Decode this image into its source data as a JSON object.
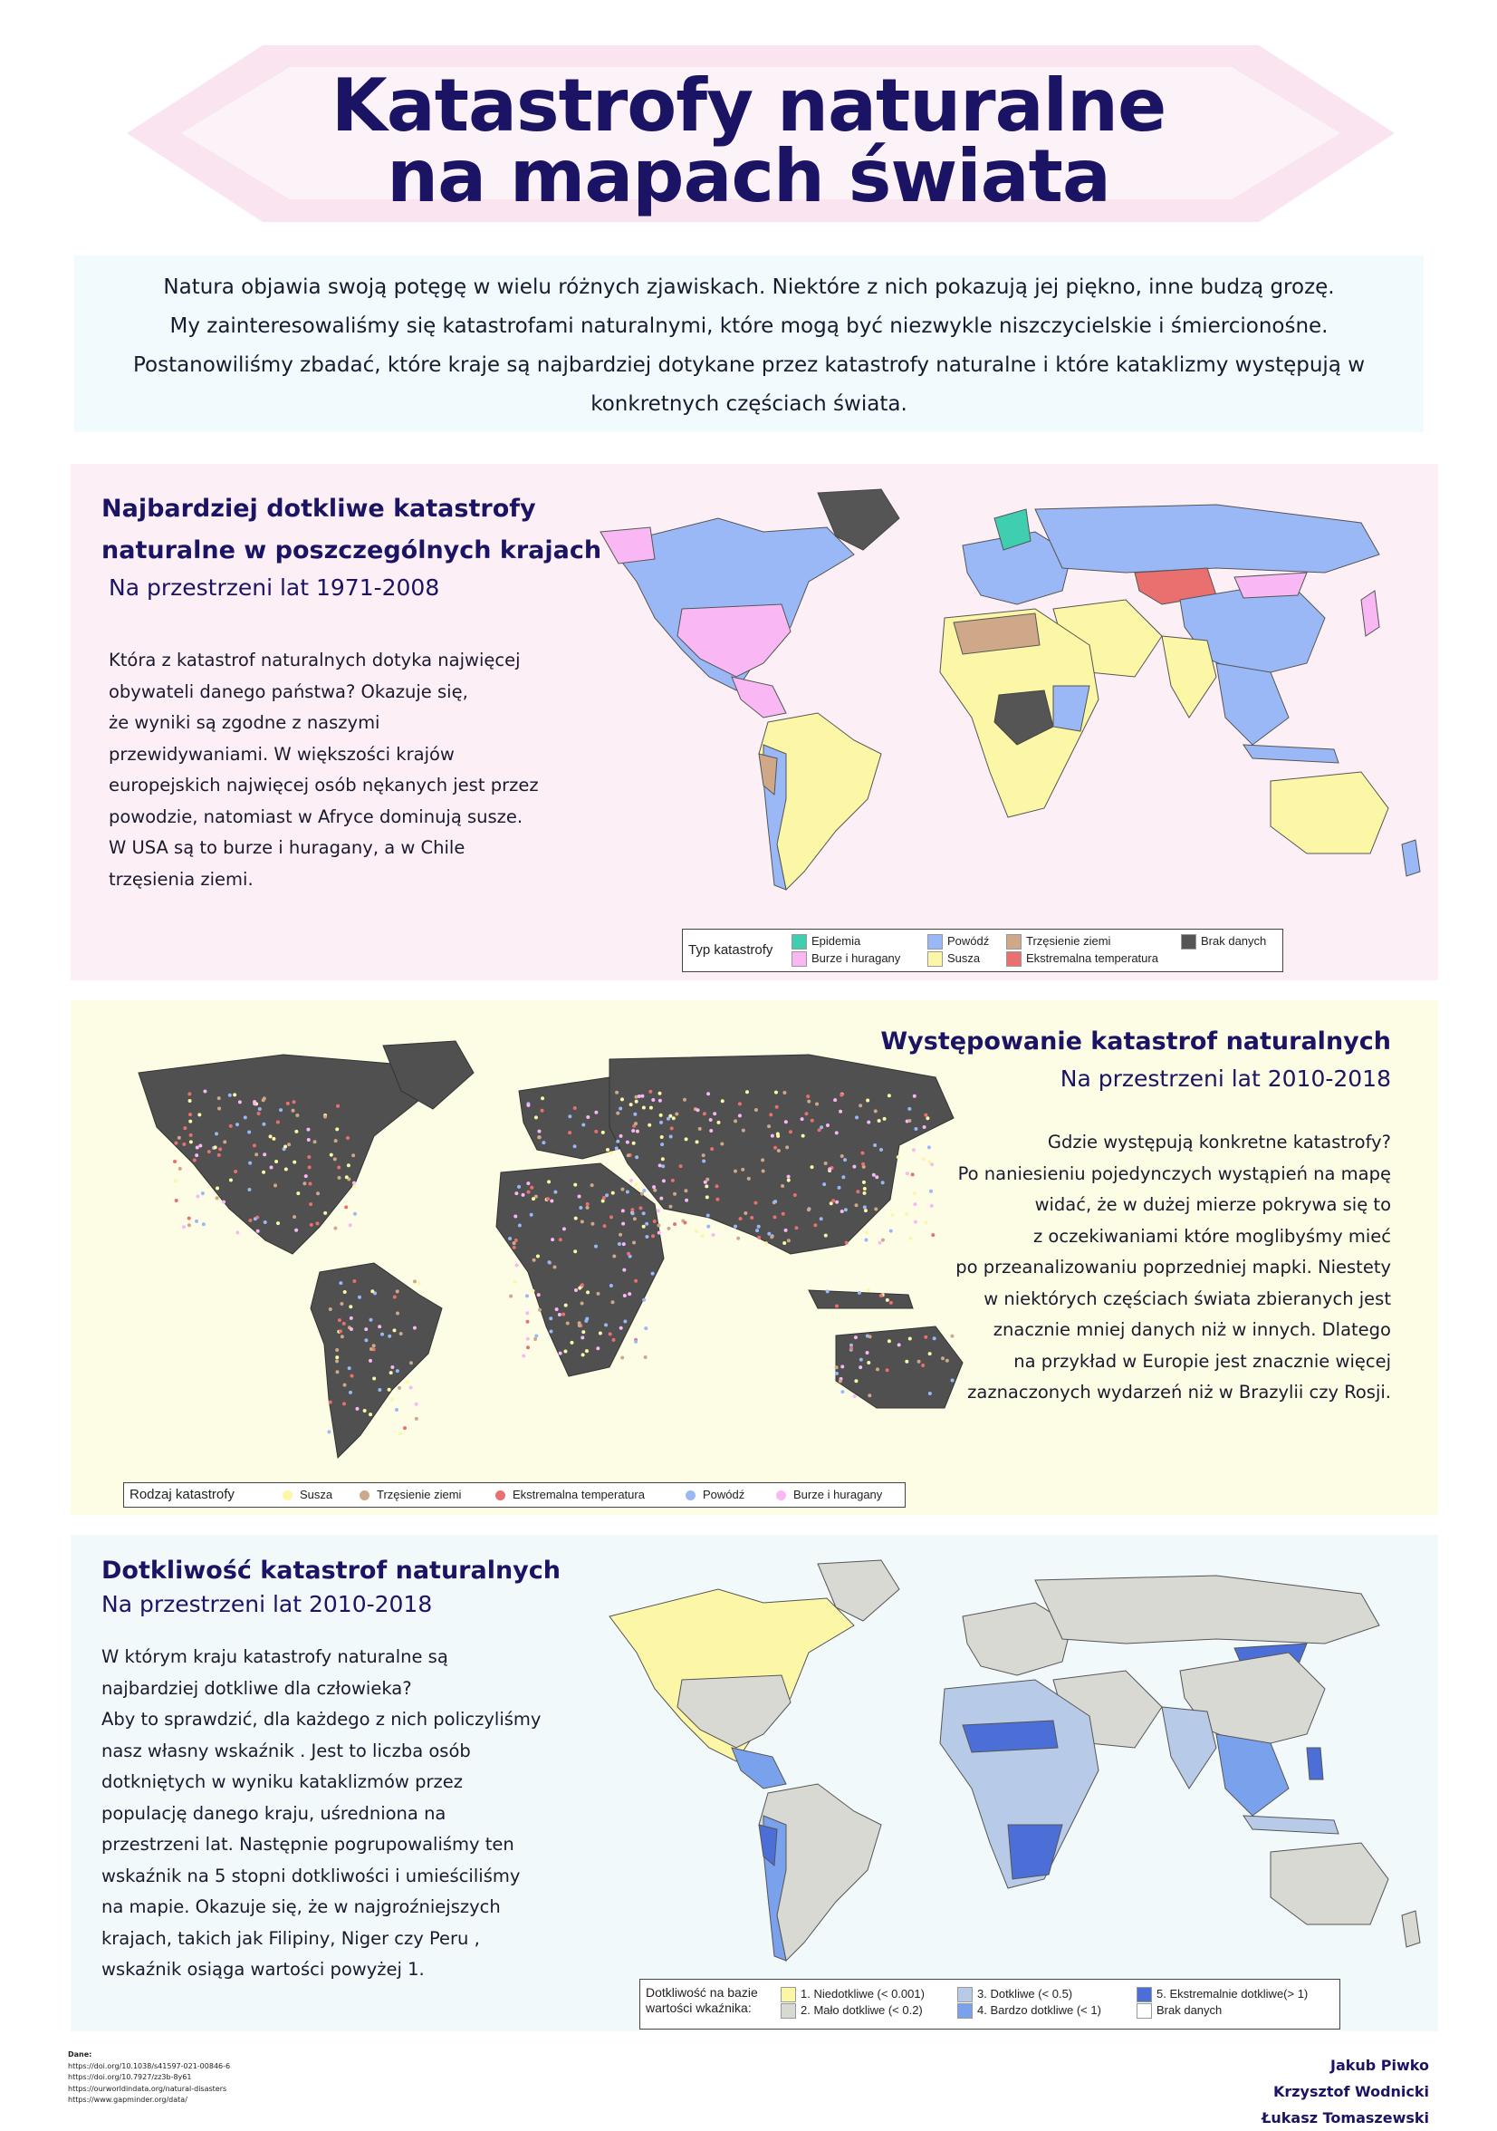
{
  "header": {
    "title_line1": "Katastrofy naturalne",
    "title_line2": "na mapach świata"
  },
  "intro": {
    "line1": "Natura objawia swoją potęgę w wielu różnych zjawiskach. Niektóre z nich pokazują jej piękno, inne budzą grozę.",
    "line2": "My zainteresowaliśmy się katastrofami naturalnymi, które mogą być niezwykle niszczycielskie i śmiercionośne.",
    "line3": "Postanowiliśmy zbadać, które kraje są najbardziej dotykane przez katastrofy naturalne i które kataklizmy występują w",
    "line4": "konkretnych częściach świata."
  },
  "section1": {
    "title_line1": "Najbardziej dotkliwe katastrofy",
    "title_line2": "naturalne w poszczególnych krajach",
    "subtitle": "Na przestrzeni lat 1971-2008",
    "body": [
      "Która z katastrof naturalnych dotyka najwięcej",
      "obywateli danego państwa? Okazuje się,",
      " że wyniki są zgodne z naszymi",
      "przewidywaniami. W większości krajów",
      "europejskich najwięcej osób nękanych jest przez",
      "powodzie, natomiast  w Afryce dominują susze.",
      "W USA są to burze i huragany, a w Chile",
      "trzęsienia ziemi."
    ],
    "legend": {
      "title": "Typ katastrofy",
      "items": [
        {
          "label": "Epidemia",
          "color": "#3fcfb0"
        },
        {
          "label": "Burze i huragany",
          "color": "#f9b8f4"
        },
        {
          "label": "Powódź",
          "color": "#9ab8f5"
        },
        {
          "label": "Susza",
          "color": "#fbf7a6"
        },
        {
          "label": "Trzęsienie ziemi",
          "color": "#cfa889"
        },
        {
          "label": "Ekstremalna temperatura",
          "color": "#ea7070"
        },
        {
          "label": "Brak danych",
          "color": "#555555"
        }
      ]
    }
  },
  "section2": {
    "title": "Występowanie katastrof naturalnych",
    "subtitle": "Na przestrzeni lat 2010-2018",
    "body": [
      "Gdzie występują konkretne katastrofy?",
      "Po naniesieniu pojedynczych wystąpień na mapę",
      "widać, że w dużej mierze pokrywa się to",
      "z oczekiwaniami które moglibyśmy mieć",
      "po przeanalizowaniu poprzedniej mapki. Niestety",
      "w niektórych częściach świata zbieranych jest",
      "znacznie mniej danych niż w innych. Dlatego",
      "na przykład w Europie jest znacznie więcej",
      "zaznaczonych wydarzeń niż w Brazylii czy Rosji."
    ],
    "legend": {
      "title": "Rodzaj katastrofy",
      "items": [
        {
          "label": "Susza",
          "color": "#fbf7a6"
        },
        {
          "label": "Trzęsienie ziemi",
          "color": "#cfa889"
        },
        {
          "label": "Ekstremalna temperatura",
          "color": "#ea7070"
        },
        {
          "label": "Powódź",
          "color": "#9ab8f5"
        },
        {
          "label": "Burze i huragany",
          "color": "#f9b8f4"
        }
      ]
    }
  },
  "section3": {
    "title": "Dotkliwość katastrof naturalnych",
    "subtitle": "Na przestrzeni lat 2010-2018",
    "body": [
      "W którym kraju katastrofy naturalne są",
      "najbardziej dotkliwe dla człowieka?",
      "Aby to sprawdzić, dla każdego z  nich policzyliśmy",
      "nasz własny wskaźnik . Jest to liczba osób",
      "dotkniętych w wyniku kataklizmów przez",
      "populację danego kraju, uśredniona na",
      "przestrzeni lat. Następnie pogrupowaliśmy ten",
      "wskaźnik na 5 stopni dotkliwości i umieściliśmy",
      "na mapie.  Okazuje się, że  w  najgroźniejszych",
      "krajach, takich jak Filipiny, Niger czy Peru ,",
      "wskaźnik osiąga wartości powyżej 1."
    ],
    "legend": {
      "title_line1": "Dotkliwość na bazie",
      "title_line2": "wartości wkaźnika:",
      "items": [
        {
          "label": "1. Niedotkliwe (< 0.001)",
          "color": "#fbf7a6"
        },
        {
          "label": "2. Mało dotkliwe (< 0.2)",
          "color": "#d9d9d4"
        },
        {
          "label": "3. Dotkliwe (< 0.5)",
          "color": "#b7cbe8"
        },
        {
          "label": "4. Bardzo dotkliwe (< 1)",
          "color": "#7aa2ec"
        },
        {
          "label": "5. Ekstremalnie dotkliwe(> 1)",
          "color": "#4b6fd6"
        },
        {
          "label": "Brak danych",
          "color": "#ffffff"
        }
      ]
    }
  },
  "sources": {
    "label": "Dane:",
    "links": [
      "https://doi.org/10.1038/s41597-021-00846-6",
      "https://doi.org/10.7927/zz3b-8y61",
      "https://ourworldindata.org/natural-disasters",
      "https://www.gapminder.org/data/"
    ]
  },
  "authors": [
    "Jakub Piwko",
    "Krzysztof Wodnicki",
    "Łukasz Tomaszewski"
  ]
}
